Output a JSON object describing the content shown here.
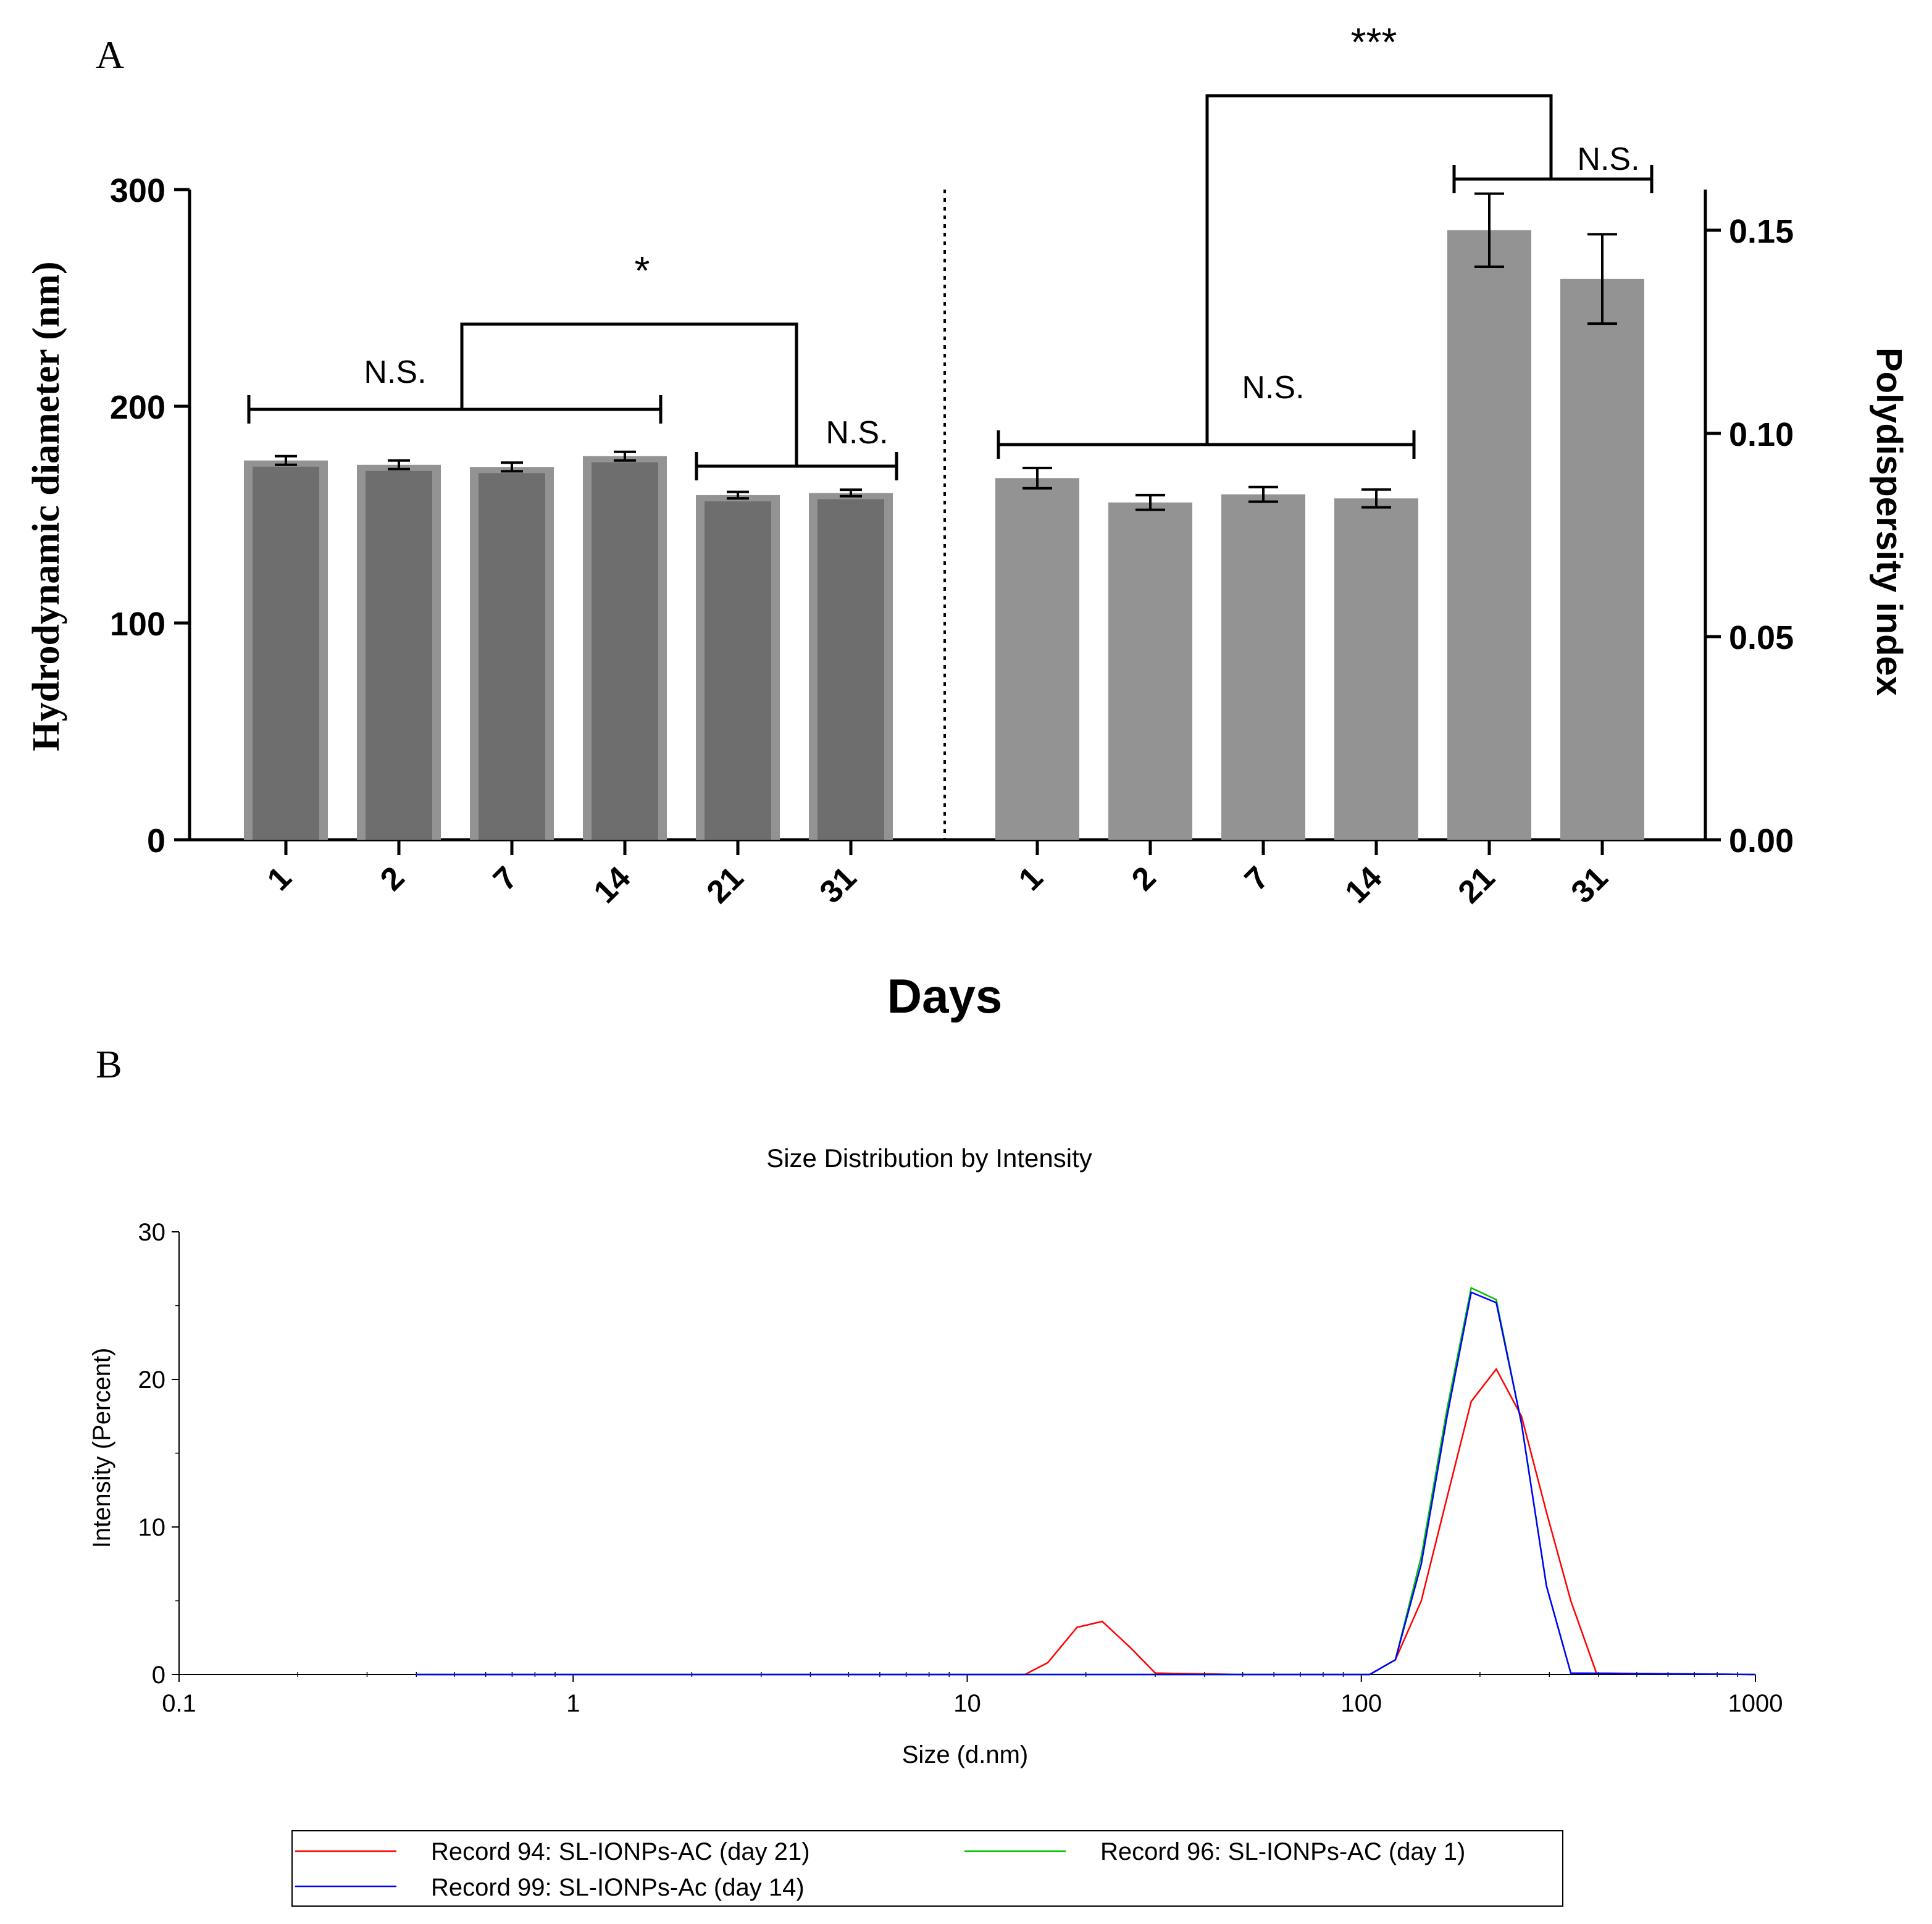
{
  "panel_a": {
    "label": "A",
    "xlabel": "Days",
    "left_ylabel": "Hydrodynamic diameter (nm)",
    "right_ylabel": "Polydispersity index",
    "left_ticks": [
      "0",
      "100",
      "200",
      "300"
    ],
    "right_ticks": [
      "0.00",
      "0.05",
      "0.10",
      "0.15"
    ],
    "significance": {
      "left_ns_1": "N.S.",
      "left_star": "*",
      "left_ns_2": "N.S.",
      "right_ns_1": "N.S.",
      "right_stars": "***",
      "right_ns_2": "N.S."
    }
  },
  "panel_b": {
    "label": "B",
    "title": "Size Distribution by Intensity",
    "xlabel": "Size (d.nm)",
    "ylabel": "Intensity (Percent)",
    "x_ticks": [
      "0.1",
      "1",
      "10",
      "100",
      "1000"
    ],
    "y_ticks": [
      "0",
      "10",
      "20",
      "30"
    ],
    "legend": [
      {
        "label": "Record 94: SL-IONPs-AC (day 21)",
        "color": "#ff0000"
      },
      {
        "label": "Record 96: SL-IONPs-AC (day 1)",
        "color": "#00c000"
      },
      {
        "label": "Record 99: SL-IONPs-Ac (day 14)",
        "color": "#0000ff"
      }
    ]
  },
  "chart_data": [
    {
      "type": "bar",
      "title": "",
      "xlabel": "Days",
      "ylabel": "Hydrodynamic diameter (nm)",
      "ylim": [
        0,
        300
      ],
      "categories": [
        "1",
        "2",
        "7",
        "14",
        "21",
        "31"
      ],
      "values": [
        175,
        173,
        172,
        177,
        159,
        160
      ],
      "errors": [
        2,
        2,
        2,
        2,
        1.5,
        1.5
      ],
      "color": "#6e6e6e"
    },
    {
      "type": "bar",
      "title": "",
      "xlabel": "Days",
      "ylabel": "Polydispersity index",
      "ylim": [
        0,
        0.16
      ],
      "categories": [
        "1",
        "2",
        "7",
        "14",
        "21",
        "31"
      ],
      "values": [
        0.089,
        0.083,
        0.085,
        0.084,
        0.15,
        0.138
      ],
      "errors": [
        0.0025,
        0.0018,
        0.0018,
        0.0022,
        0.009,
        0.011
      ],
      "color": "#939393"
    },
    {
      "type": "line",
      "title": "Size Distribution by Intensity",
      "xlabel": "Size (d.nm)",
      "ylabel": "Intensity (Percent)",
      "xscale": "log",
      "xlim": [
        0.1,
        1000
      ],
      "ylim": [
        0,
        30
      ],
      "series": [
        {
          "name": "Record 94: SL-IONPs-AC (day 21)",
          "color": "#ff0000",
          "x": [
            0.4,
            14,
            16,
            19,
            22,
            26,
            30,
            50,
            105,
            122,
            142,
            165,
            190,
            220,
            255,
            295,
            340,
            395,
            1000
          ],
          "y": [
            0,
            0,
            0.8,
            3.2,
            3.6,
            1.8,
            0.1,
            0,
            0,
            1,
            5,
            12,
            18.5,
            20.7,
            17.5,
            11,
            5,
            0.1,
            0
          ]
        },
        {
          "name": "Record 96: SL-IONPs-AC (day 1)",
          "color": "#00c000",
          "x": [
            0.4,
            105,
            122,
            142,
            165,
            190,
            220,
            255,
            295,
            340,
            1000
          ],
          "y": [
            0,
            0,
            1,
            8,
            18,
            26.2,
            25.4,
            17,
            6,
            0.1,
            0
          ]
        },
        {
          "name": "Record 99: SL-IONPs-Ac (day 14)",
          "color": "#0000ff",
          "x": [
            0.4,
            105,
            122,
            142,
            165,
            190,
            220,
            255,
            295,
            340,
            1000
          ],
          "y": [
            0,
            0,
            1,
            7.5,
            17.5,
            25.9,
            25.2,
            17,
            6,
            0.1,
            0
          ]
        }
      ]
    }
  ]
}
